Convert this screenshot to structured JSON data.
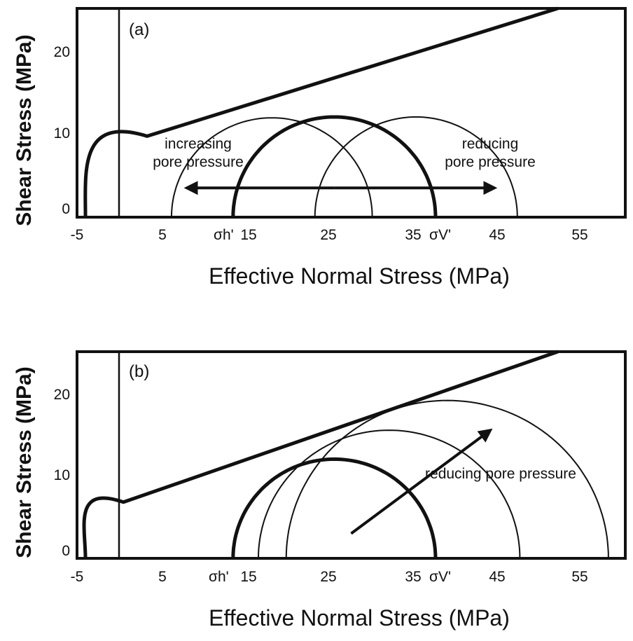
{
  "chart_data": [
    {
      "type": "scatter",
      "panel_label": "(a)",
      "xlabel": "Effective Normal Stress (MPa)",
      "ylabel": "Shear Stress (MPa)",
      "xlim": [
        -5,
        60
      ],
      "ylim": [
        0,
        25
      ],
      "x_ticks": [
        "-5",
        "5",
        "15",
        "25",
        "35",
        "45",
        "55"
      ],
      "x_tick_values": [
        -5,
        5,
        15,
        25,
        35,
        45,
        55
      ],
      "y_ticks": [
        "0",
        "10",
        "20"
      ],
      "y_tick_values": [
        0,
        10,
        20
      ],
      "failure_envelope": {
        "curve_start": [
          -4,
          0
        ],
        "curve_end": [
          3.3,
          9.7
        ],
        "line_end": [
          52,
          25
        ]
      },
      "circles": [
        {
          "sigma3": 6.2,
          "sigma1": 30.0,
          "weight": "thin"
        },
        {
          "sigma3": 13.5,
          "sigma1": 37.5,
          "weight": "thick"
        },
        {
          "sigma3": 23.2,
          "sigma1": 47.2,
          "weight": "thin"
        }
      ],
      "stress_labels": {
        "sigma_h": "σh'",
        "sigma_v": "σV'"
      },
      "annotations": [
        {
          "lines": [
            "increasing",
            "pore pressure"
          ]
        },
        {
          "lines": [
            "reducing",
            "pore pressure"
          ]
        }
      ],
      "arrows": [
        {
          "from": [
            25.5,
            3.5
          ],
          "to": [
            8,
            3.5
          ]
        },
        {
          "from": [
            25.5,
            3.5
          ],
          "to": [
            44.5,
            3.5
          ]
        }
      ],
      "grid": false
    },
    {
      "type": "scatter",
      "panel_label": "(b)",
      "xlabel": "Effective Normal Stress (MPa)",
      "ylabel": "Shear Stress (MPa)",
      "xlim": [
        -5,
        60
      ],
      "ylim": [
        0,
        25
      ],
      "x_ticks": [
        "-5",
        "5",
        "15",
        "25",
        "35",
        "45",
        "55"
      ],
      "x_tick_values": [
        -5,
        5,
        15,
        25,
        35,
        45,
        55
      ],
      "y_ticks": [
        "0",
        "10",
        "20"
      ],
      "y_tick_values": [
        0,
        10,
        20
      ],
      "failure_envelope": {
        "curve_start": [
          -4,
          0
        ],
        "curve_end": [
          0.5,
          6.8
        ],
        "line_end": [
          52,
          25
        ]
      },
      "circles": [
        {
          "sigma3": 13.5,
          "sigma1": 37.5,
          "weight": "thick"
        },
        {
          "sigma3": 16.5,
          "sigma1": 47.5,
          "weight": "thin"
        },
        {
          "sigma3": 19.8,
          "sigma1": 58.0,
          "weight": "thin"
        }
      ],
      "stress_labels": {
        "sigma_h": "σh'",
        "sigma_v": "σV'"
      },
      "annotations": [
        {
          "lines": [
            "reducing pore pressure"
          ]
        }
      ],
      "arrows": [
        {
          "from": [
            27.5,
            3
          ],
          "to": [
            44,
            15.5
          ]
        }
      ],
      "grid": false
    }
  ]
}
